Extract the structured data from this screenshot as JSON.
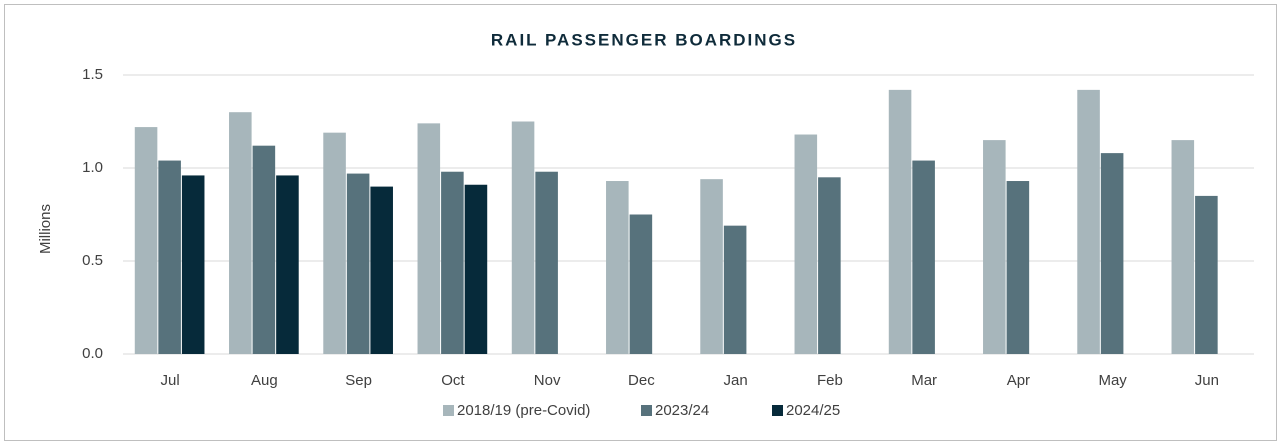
{
  "chart_data": {
    "type": "bar",
    "title": "RAIL PASSENGER BOARDINGS",
    "y_label": "Millions",
    "categories": [
      "Jul",
      "Aug",
      "Sep",
      "Oct",
      "Nov",
      "Dec",
      "Jan",
      "Feb",
      "Mar",
      "Apr",
      "May",
      "Jun"
    ],
    "series": [
      {
        "name": "2018/19 (pre-Covid)",
        "color": "#a7b6bb",
        "values": [
          1.22,
          1.3,
          1.19,
          1.24,
          1.25,
          0.93,
          0.94,
          1.18,
          1.42,
          1.15,
          1.42,
          1.15
        ]
      },
      {
        "name": "2023/24",
        "color": "#57727c",
        "values": [
          1.04,
          1.12,
          0.97,
          0.98,
          0.98,
          0.75,
          0.69,
          0.95,
          1.04,
          0.93,
          1.08,
          0.85
        ]
      },
      {
        "name": "2024/25",
        "color": "#062a3a",
        "values": [
          0.96,
          0.96,
          0.9,
          0.91,
          null,
          null,
          null,
          null,
          null,
          null,
          null,
          null
        ]
      }
    ],
    "ylim": [
      0,
      1.5
    ],
    "yticks": [
      {
        "value": 0,
        "label": "0.0"
      },
      0.5,
      {
        "value": 1,
        "label": "1.0"
      },
      1.5
    ],
    "grid": true,
    "legend": "bottom"
  }
}
